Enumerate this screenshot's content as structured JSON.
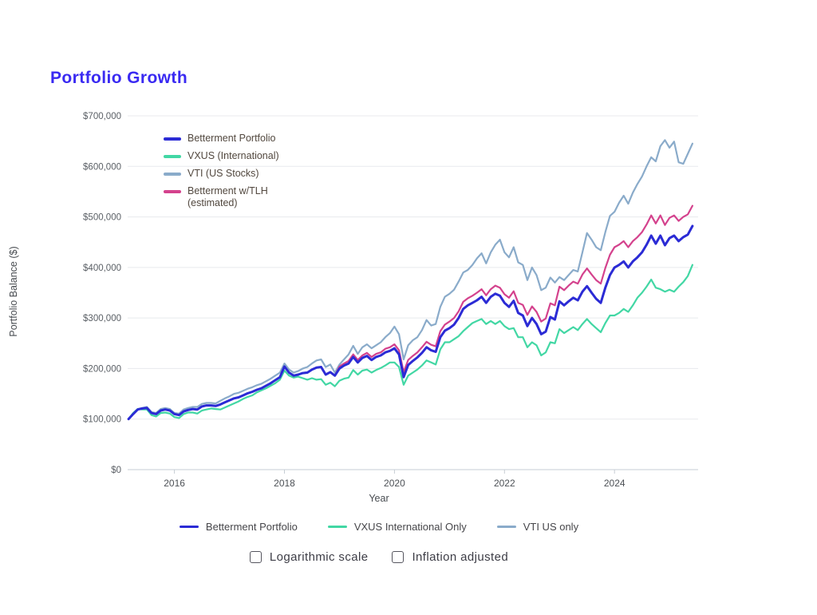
{
  "page": {
    "title": "Portfolio Growth",
    "title_color": "#3a2af2"
  },
  "legend": {
    "items": [
      {
        "label": "Betterment Portfolio",
        "label2": "",
        "color": "#2b2bd5"
      },
      {
        "label": "VXUS (International)",
        "label2": "",
        "color": "#42d7a4"
      },
      {
        "label": "VTI (US Stocks)",
        "label2": "",
        "color": "#8aabca"
      },
      {
        "label": "Betterment w/TLH",
        "label2": "(estimated)",
        "color": "#d4428d"
      }
    ]
  },
  "bottom_legend": {
    "items": [
      {
        "label": "Betterment Portfolio",
        "color": "#2b2bd5"
      },
      {
        "label": "VXUS International Only",
        "color": "#42d7a4"
      },
      {
        "label": "VTI US only",
        "color": "#8aabca"
      }
    ]
  },
  "controls": {
    "checkboxes": [
      {
        "label": "Logarithmic scale",
        "checked": false
      },
      {
        "label": "Inflation adjusted",
        "checked": false
      }
    ]
  },
  "chart_data": {
    "type": "line",
    "title": "Portfolio Growth",
    "xlabel": "Year",
    "ylabel": "Portfolio Balance ($)",
    "grid": true,
    "legend_position": "top-left-inside",
    "x_start": "2015-03",
    "x_step": "1 month",
    "unit": "USD thousands",
    "xlim_years": [
      2015.15,
      2025.52
    ],
    "ylim": [
      0,
      700
    ],
    "x_ticks": [
      2016,
      2018,
      2020,
      2022,
      2024
    ],
    "y_ticks": [
      {
        "v": 0,
        "label": "$0"
      },
      {
        "v": 100,
        "label": "$100,000"
      },
      {
        "v": 200,
        "label": "$200,000"
      },
      {
        "v": 300,
        "label": "$300,000"
      },
      {
        "v": 400,
        "label": "$400,000"
      },
      {
        "v": 500,
        "label": "$500,000"
      },
      {
        "v": 600,
        "label": "$600,000"
      },
      {
        "v": 700,
        "label": "$700,000"
      }
    ],
    "series": [
      {
        "name": "VTI (US Stocks)",
        "color": "#8aabca",
        "width": 2.2,
        "values": [
          100,
          111,
          120,
          122,
          124,
          114,
          112,
          120,
          122,
          120,
          112,
          111,
          119,
          122,
          124,
          124,
          130,
          132,
          132,
          131,
          136,
          141,
          145,
          150,
          152,
          156,
          160,
          163,
          167,
          170,
          175,
          180,
          186,
          192,
          210,
          198,
          192,
          195,
          200,
          203,
          210,
          216,
          218,
          203,
          208,
          192,
          208,
          218,
          228,
          245,
          229,
          242,
          248,
          240,
          246,
          252,
          262,
          270,
          283,
          268,
          218,
          246,
          256,
          262,
          276,
          296,
          285,
          288,
          322,
          342,
          348,
          356,
          372,
          390,
          395,
          405,
          418,
          428,
          408,
          430,
          445,
          455,
          430,
          420,
          440,
          410,
          405,
          375,
          400,
          385,
          355,
          360,
          380,
          370,
          381,
          375,
          385,
          395,
          392,
          430,
          468,
          455,
          440,
          434,
          470,
          502,
          510,
          528,
          542,
          526,
          548,
          565,
          580,
          600,
          618,
          610,
          640,
          652,
          637,
          649,
          608,
          605,
          625,
          645
        ]
      },
      {
        "name": "VXUS (International)",
        "color": "#42d7a4",
        "width": 2.2,
        "values": [
          100,
          112,
          120,
          119,
          119,
          108,
          105,
          112,
          113,
          111,
          104,
          102,
          110,
          113,
          113,
          111,
          117,
          119,
          121,
          120,
          119,
          123,
          127,
          131,
          135,
          140,
          144,
          147,
          153,
          157,
          161,
          166,
          171,
          178,
          196,
          186,
          182,
          184,
          181,
          178,
          181,
          178,
          179,
          168,
          172,
          165,
          176,
          180,
          182,
          197,
          188,
          196,
          198,
          192,
          197,
          201,
          206,
          212,
          212,
          203,
          168,
          186,
          192,
          198,
          206,
          216,
          212,
          208,
          238,
          252,
          252,
          258,
          264,
          274,
          282,
          290,
          294,
          298,
          288,
          294,
          288,
          294,
          284,
          278,
          280,
          262,
          262,
          242,
          252,
          246,
          226,
          232,
          252,
          250,
          278,
          270,
          276,
          282,
          276,
          288,
          298,
          288,
          280,
          272,
          290,
          305,
          305,
          310,
          318,
          312,
          325,
          340,
          350,
          362,
          376,
          360,
          357,
          352,
          356,
          352,
          362,
          371,
          383,
          405
        ]
      },
      {
        "name": "Betterment w/TLH (estimated)",
        "color": "#d4428d",
        "width": 2.2,
        "values": [
          100,
          110,
          119,
          121,
          122,
          112,
          110,
          117,
          119,
          117,
          110,
          108,
          115,
          118,
          120,
          119,
          125,
          127,
          127,
          126,
          129,
          133,
          137,
          141,
          143,
          147,
          151,
          154,
          158,
          161,
          166,
          171,
          177,
          183,
          204,
          192,
          186,
          188,
          191,
          192,
          198,
          202,
          203,
          188,
          193,
          186,
          204,
          210,
          215,
          228,
          217,
          226,
          231,
          223,
          229,
          232,
          239,
          242,
          248,
          236,
          193,
          217,
          225,
          232,
          242,
          253,
          247,
          244,
          274,
          287,
          293,
          300,
          313,
          332,
          339,
          344,
          350,
          357,
          345,
          357,
          364,
          360,
          347,
          340,
          353,
          330,
          326,
          306,
          323,
          312,
          293,
          299,
          329,
          325,
          362,
          355,
          364,
          372,
          368,
          386,
          398,
          386,
          375,
          368,
          399,
          425,
          440,
          445,
          452,
          440,
          452,
          460,
          470,
          485,
          503,
          487,
          503,
          484,
          498,
          503,
          492,
          500,
          505,
          522
        ]
      },
      {
        "name": "Betterment Portfolio",
        "color": "#2b2bd5",
        "width": 3,
        "values": [
          100,
          110,
          119,
          121,
          122,
          112,
          110,
          117,
          119,
          117,
          110,
          108,
          115,
          118,
          120,
          119,
          125,
          127,
          127,
          126,
          129,
          133,
          137,
          141,
          143,
          147,
          151,
          154,
          158,
          161,
          166,
          171,
          177,
          183,
          204,
          192,
          186,
          188,
          191,
          192,
          198,
          202,
          203,
          188,
          193,
          186,
          200,
          206,
          210,
          223,
          212,
          221,
          225,
          217,
          223,
          226,
          232,
          235,
          240,
          228,
          183,
          207,
          215,
          222,
          231,
          242,
          236,
          233,
          262,
          275,
          280,
          287,
          300,
          318,
          325,
          330,
          335,
          342,
          330,
          342,
          348,
          344,
          330,
          322,
          334,
          310,
          305,
          284,
          300,
          288,
          268,
          273,
          302,
          297,
          333,
          325,
          333,
          340,
          335,
          352,
          363,
          350,
          338,
          330,
          360,
          385,
          400,
          405,
          412,
          400,
          412,
          420,
          430,
          445,
          463,
          447,
          463,
          444,
          458,
          463,
          452,
          460,
          465,
          482
        ]
      }
    ]
  }
}
